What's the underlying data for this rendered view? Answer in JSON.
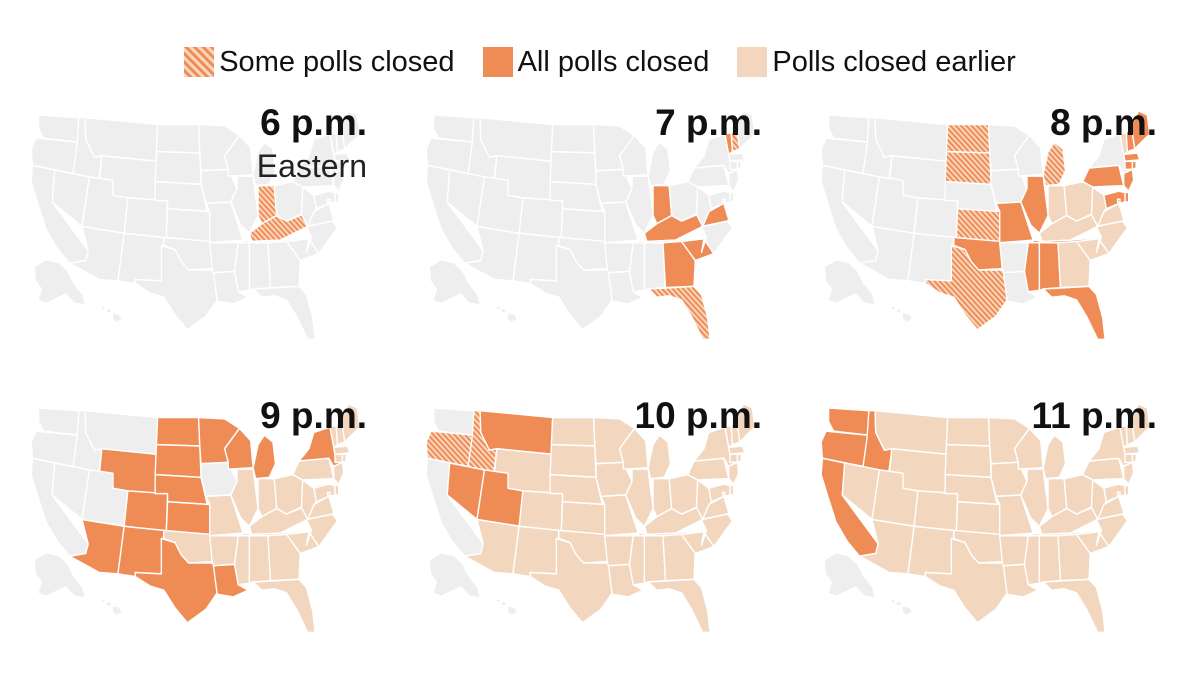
{
  "legend": [
    {
      "label": "Some polls closed",
      "style": "hatch"
    },
    {
      "label": "All polls closed",
      "style": "solid"
    },
    {
      "label": "Polls closed earlier",
      "style": "earlier"
    }
  ],
  "colors": {
    "solid": "#ef8c55",
    "hatch_stripe": "#ef8c55",
    "hatch_bg": "#f9d6bd",
    "earlier": "#f2d6be",
    "not_closed": "#eeeeee",
    "border": "#ffffff"
  },
  "panels": [
    {
      "time": "6 p.m.",
      "zone": "Eastern",
      "hatch": [
        "IN",
        "KY"
      ],
      "solid": [],
      "earlier": []
    },
    {
      "time": "7 p.m.",
      "zone": "",
      "hatch": [
        "FL",
        "NH"
      ],
      "solid": [
        "IN",
        "KY",
        "VA",
        "GA",
        "SC",
        "VT"
      ],
      "earlier": []
    },
    {
      "time": "8 p.m.",
      "zone": "",
      "hatch": [
        "ND",
        "SD",
        "KS",
        "TX",
        "MI"
      ],
      "solid": [
        "ME",
        "MA",
        "RI",
        "CT",
        "NJ",
        "PA",
        "DE",
        "MD",
        "DC",
        "IL",
        "MO",
        "OK",
        "TN",
        "MS",
        "AL",
        "FL",
        "NH"
      ],
      "earlier": [
        "IN",
        "KY",
        "VA",
        "GA",
        "SC",
        "VT",
        "OH",
        "WV",
        "NC"
      ]
    },
    {
      "time": "9 p.m.",
      "zone": "",
      "hatch": [],
      "solid": [
        "AZ",
        "CO",
        "NM",
        "WY",
        "NE",
        "KS",
        "ND",
        "SD",
        "MN",
        "WI",
        "MI",
        "NY",
        "TX",
        "LA"
      ],
      "earlier": [
        "ME",
        "NH",
        "VT",
        "MA",
        "RI",
        "CT",
        "NJ",
        "PA",
        "DE",
        "MD",
        "DC",
        "IL",
        "MO",
        "OK",
        "TN",
        "MS",
        "AL",
        "FL",
        "IN",
        "KY",
        "VA",
        "GA",
        "SC",
        "OH",
        "WV",
        "NC",
        "AR"
      ]
    },
    {
      "time": "10 p.m.",
      "zone": "",
      "hatch": [
        "OR",
        "ID"
      ],
      "solid": [
        "MT",
        "NV",
        "UT"
      ],
      "earlier": [
        "AZ",
        "CO",
        "NM",
        "WY",
        "NE",
        "KS",
        "ND",
        "SD",
        "MN",
        "WI",
        "MI",
        "NY",
        "TX",
        "LA",
        "ME",
        "NH",
        "VT",
        "MA",
        "RI",
        "CT",
        "NJ",
        "PA",
        "DE",
        "MD",
        "DC",
        "IL",
        "MO",
        "OK",
        "TN",
        "MS",
        "AL",
        "FL",
        "IN",
        "KY",
        "VA",
        "GA",
        "SC",
        "OH",
        "WV",
        "NC",
        "AR",
        "IA"
      ]
    },
    {
      "time": "11 p.m.",
      "zone": "",
      "hatch": [],
      "solid": [
        "WA",
        "OR",
        "CA",
        "ID"
      ],
      "earlier": [
        "MT",
        "NV",
        "UT",
        "AZ",
        "CO",
        "NM",
        "WY",
        "NE",
        "KS",
        "ND",
        "SD",
        "MN",
        "WI",
        "MI",
        "NY",
        "TX",
        "LA",
        "ME",
        "NH",
        "VT",
        "MA",
        "RI",
        "CT",
        "NJ",
        "PA",
        "DE",
        "MD",
        "DC",
        "IL",
        "MO",
        "OK",
        "TN",
        "MS",
        "AL",
        "FL",
        "IN",
        "KY",
        "VA",
        "GA",
        "SC",
        "OH",
        "WV",
        "NC",
        "AR",
        "IA"
      ]
    }
  ]
}
